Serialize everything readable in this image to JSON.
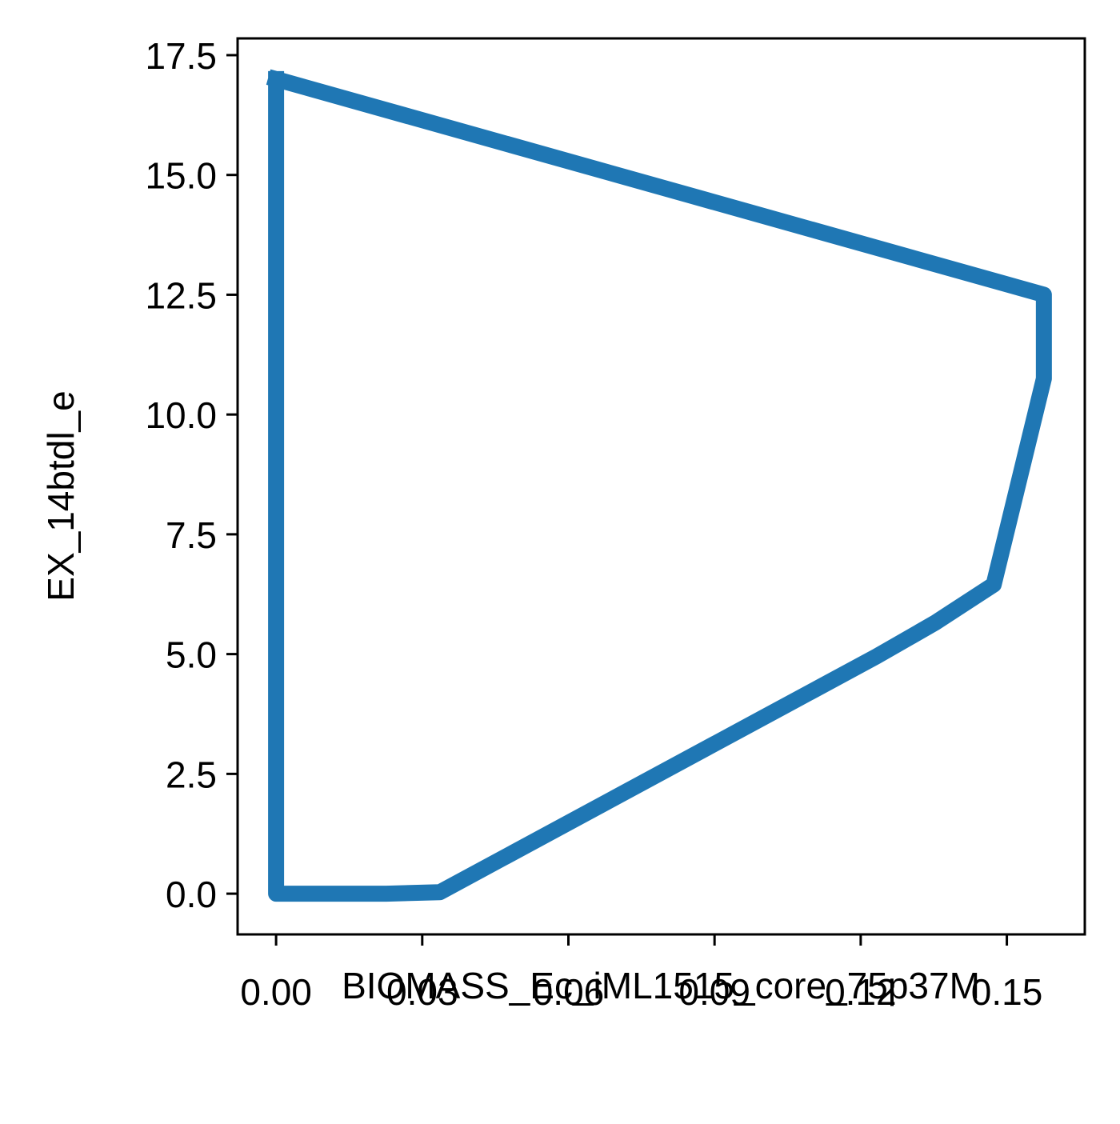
{
  "chart_data": {
    "type": "line",
    "title": "",
    "xlabel": "BIOMASS_Ec_iML1515_core_75p37M",
    "ylabel": "EX_14btdl_e",
    "xlim": [
      -0.0079,
      0.166
    ],
    "ylim": [
      -0.85,
      17.85
    ],
    "xticks": [
      0.0,
      0.03,
      0.06,
      0.09,
      0.12,
      0.15
    ],
    "xtick_labels": [
      "0.00",
      "0.03",
      "0.06",
      "0.09",
      "0.12",
      "0.15"
    ],
    "yticks": [
      0.0,
      2.5,
      5.0,
      7.5,
      10.0,
      12.5,
      15.0,
      17.5
    ],
    "ytick_labels": [
      "0.0",
      "2.5",
      "5.0",
      "7.5",
      "10.0",
      "12.5",
      "15.0",
      "17.5"
    ],
    "grid": false,
    "legend": "none",
    "series": [
      {
        "color": "#1f77b4",
        "closed": true,
        "points": [
          [
            0.0,
            17.0
          ],
          [
            0.1576,
            12.5
          ],
          [
            0.1576,
            10.8
          ],
          [
            0.1576,
            10.75
          ],
          [
            0.1473,
            6.45
          ],
          [
            0.1352,
            5.65
          ],
          [
            0.1232,
            4.95
          ],
          [
            0.0336,
            0.03
          ],
          [
            0.0226,
            0.0
          ],
          [
            0.0,
            0.0
          ],
          [
            0.0,
            17.0
          ]
        ]
      }
    ]
  }
}
